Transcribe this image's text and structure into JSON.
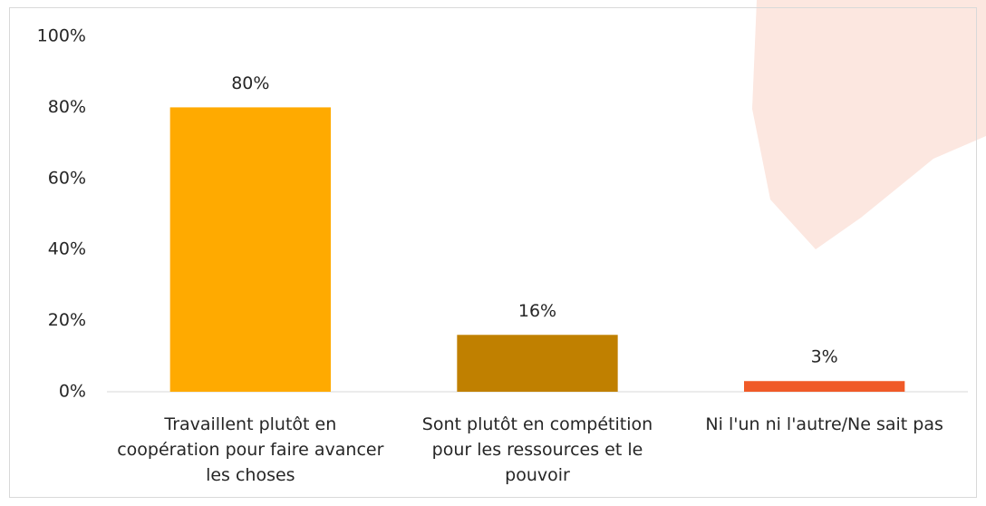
{
  "chart_data": {
    "type": "bar",
    "categories": [
      "Travaillent plutôt en coopération pour faire avancer les choses",
      "Sont plutôt en compétition pour les ressources et le pouvoir",
      "Ni l'un ni l'autre/Ne sait pas"
    ],
    "values": [
      80,
      16,
      3
    ],
    "value_labels": [
      "80%",
      "16%",
      "3%"
    ],
    "colors": [
      "#ffaa00",
      "#c08000",
      "#f05a28"
    ],
    "ylim": [
      0,
      100
    ],
    "yticks": [
      {
        "value": 0,
        "label": "0%"
      },
      {
        "value": 20,
        "label": "20%"
      },
      {
        "value": 40,
        "label": "40%"
      },
      {
        "value": 60,
        "label": "60%"
      },
      {
        "value": 80,
        "label": "80%"
      },
      {
        "value": 100,
        "label": "100%"
      }
    ],
    "grid": false
  }
}
